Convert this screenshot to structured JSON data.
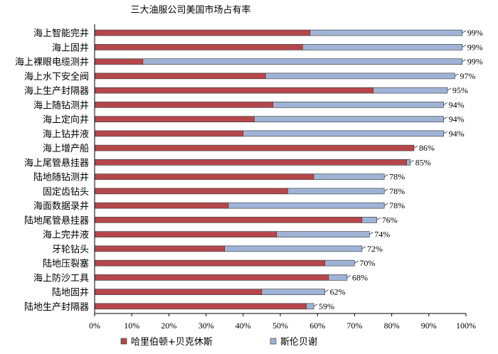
{
  "chart_data": {
    "type": "bar",
    "orientation": "horizontal",
    "stacked": true,
    "title": "三大油服公司美国市场占有率",
    "categories": [
      "海上智能完井",
      "海上固井",
      "海上裸眼电缆测井",
      "海上水下安全阀",
      "海上生产封隔器",
      "海上随钻测井",
      "海上定向井",
      "海上钻井液",
      "海上增产船",
      "海上尾管悬挂器",
      "陆地随钻测井",
      "固定齿钻头",
      "海面数据录井",
      "陆地尾管悬挂器",
      "海上完井液",
      "牙轮钻头",
      "陆地压裂塞",
      "海上防沙工具",
      "陆地固井",
      "陆地生产封隔器"
    ],
    "series": [
      {
        "name": "哈里伯顿+贝克休斯",
        "color": "#b5474b",
        "values": [
          58,
          56,
          13,
          46,
          75,
          48,
          43,
          40,
          86,
          84,
          59,
          52,
          36,
          72,
          49,
          35,
          62,
          63,
          45,
          57
        ]
      },
      {
        "name": "斯伦贝谢",
        "color": "#9fb3d6",
        "values": [
          41,
          43,
          86,
          51,
          20,
          46,
          51,
          54,
          0,
          1,
          19,
          26,
          42,
          4,
          25,
          37,
          8,
          5,
          17,
          2
        ]
      }
    ],
    "totals": [
      "99%",
      "99%",
      "99%",
      "97%",
      "95%",
      "94%",
      "94%",
      "94%",
      "86%",
      "85%",
      "78%",
      "78%",
      "78%",
      "76%",
      "74%",
      "72%",
      "70%",
      "68%",
      "62%",
      "59%"
    ],
    "xlim": [
      0,
      100
    ],
    "xticks": [
      "0%",
      "10%",
      "20%",
      "30%",
      "40%",
      "50%",
      "60%",
      "70%",
      "80%",
      "90%",
      "100%"
    ],
    "grid": false,
    "legend_position": "bottom"
  }
}
